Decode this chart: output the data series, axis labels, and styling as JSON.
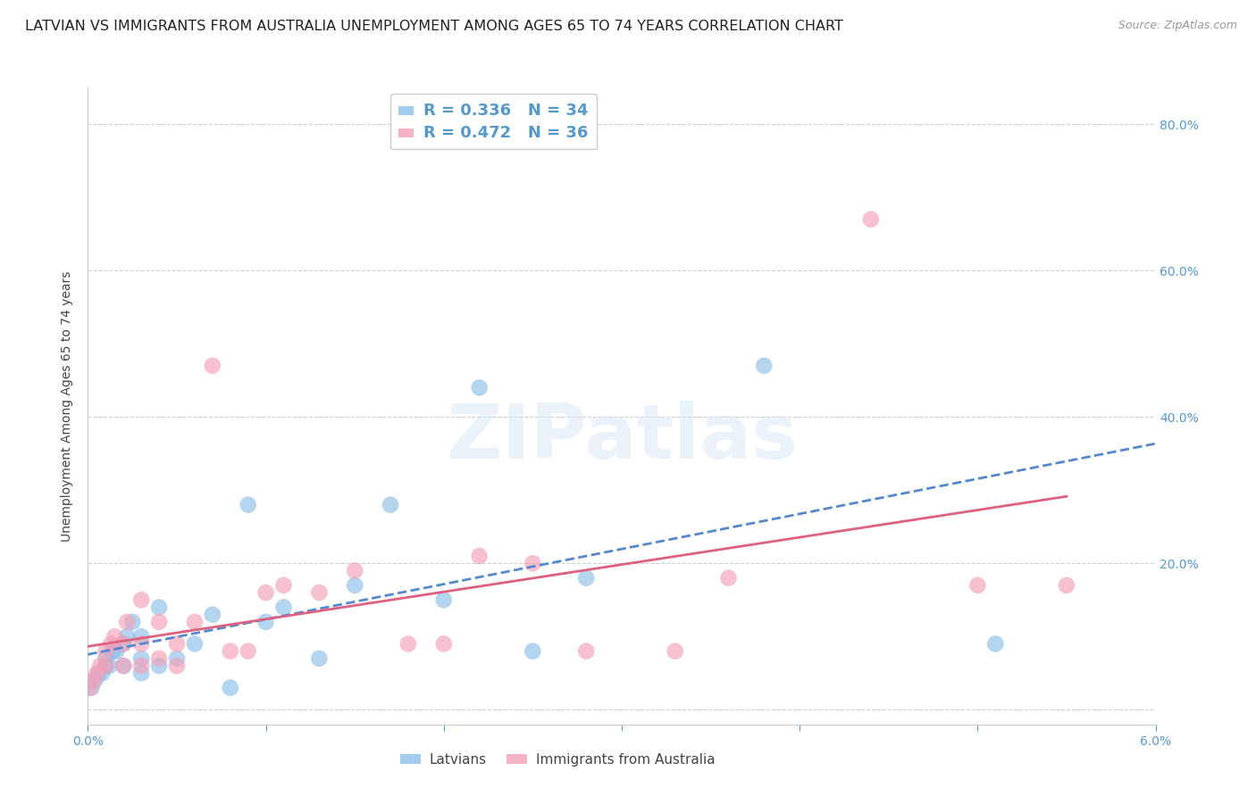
{
  "title": "LATVIAN VS IMMIGRANTS FROM AUSTRALIA UNEMPLOYMENT AMONG AGES 65 TO 74 YEARS CORRELATION CHART",
  "source": "Source: ZipAtlas.com",
  "ylabel": "Unemployment Among Ages 65 to 74 years",
  "xlim": [
    0.0,
    0.06
  ],
  "ylim": [
    -0.02,
    0.85
  ],
  "ytick_positions": [
    0.0,
    0.2,
    0.4,
    0.6,
    0.8
  ],
  "ytick_labels_right": [
    "",
    "20.0%",
    "40.0%",
    "60.0%",
    "80.0%"
  ],
  "xtick_positions": [
    0.0,
    0.01,
    0.02,
    0.03,
    0.04,
    0.05,
    0.06
  ],
  "xtick_labels": [
    "0.0%",
    "",
    "",
    "",
    "",
    "",
    "6.0%"
  ],
  "color_latvian": "#8bbfe8",
  "color_australia": "#f4a0b8",
  "line_color_latvian": "#5588cc",
  "line_color_australia": "#e06080",
  "R_latvian": 0.336,
  "N_latvian": 34,
  "R_australia": 0.472,
  "N_australia": 36,
  "background_color": "#ffffff",
  "grid_color": "#d0d0d0",
  "title_fontsize": 11.5,
  "label_fontsize": 10,
  "tick_fontsize": 10,
  "right_tick_color": "#5599cc",
  "latvian_x": [
    0.0002,
    0.0004,
    0.0006,
    0.0008,
    0.001,
    0.001,
    0.0012,
    0.0014,
    0.0016,
    0.002,
    0.002,
    0.0022,
    0.0025,
    0.003,
    0.003,
    0.003,
    0.004,
    0.004,
    0.005,
    0.006,
    0.007,
    0.008,
    0.009,
    0.01,
    0.011,
    0.013,
    0.015,
    0.017,
    0.02,
    0.022,
    0.025,
    0.028,
    0.038,
    0.051
  ],
  "latvian_y": [
    0.03,
    0.04,
    0.05,
    0.05,
    0.06,
    0.07,
    0.06,
    0.08,
    0.08,
    0.06,
    0.09,
    0.1,
    0.12,
    0.05,
    0.07,
    0.1,
    0.06,
    0.14,
    0.07,
    0.09,
    0.13,
    0.03,
    0.28,
    0.12,
    0.14,
    0.07,
    0.17,
    0.28,
    0.15,
    0.44,
    0.08,
    0.18,
    0.47,
    0.09
  ],
  "australia_x": [
    0.0001,
    0.0003,
    0.0005,
    0.0007,
    0.001,
    0.001,
    0.0013,
    0.0015,
    0.002,
    0.002,
    0.0022,
    0.003,
    0.003,
    0.003,
    0.004,
    0.004,
    0.005,
    0.005,
    0.006,
    0.007,
    0.008,
    0.009,
    0.01,
    0.011,
    0.013,
    0.015,
    0.018,
    0.02,
    0.022,
    0.025,
    0.028,
    0.033,
    0.036,
    0.044,
    0.05,
    0.055
  ],
  "australia_y": [
    0.03,
    0.04,
    0.05,
    0.06,
    0.06,
    0.08,
    0.09,
    0.1,
    0.06,
    0.09,
    0.12,
    0.06,
    0.09,
    0.15,
    0.07,
    0.12,
    0.06,
    0.09,
    0.12,
    0.47,
    0.08,
    0.08,
    0.16,
    0.17,
    0.16,
    0.19,
    0.09,
    0.09,
    0.21,
    0.2,
    0.08,
    0.08,
    0.18,
    0.67,
    0.17,
    0.17
  ]
}
